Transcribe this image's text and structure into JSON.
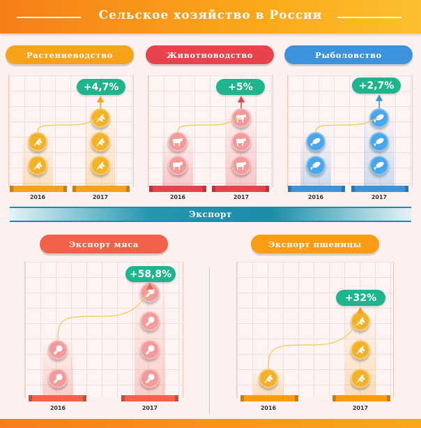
{
  "header": {
    "title": "Сельское хозяйство в России"
  },
  "export_section": {
    "title": "Экспорт"
  },
  "chart_data": [
    {
      "type": "pictograph",
      "title": "Растениеводство",
      "categories": [
        "2016",
        "2017"
      ],
      "icon": "wheat-icon",
      "icon_counts": [
        2,
        3
      ],
      "change_label": "+4,7%",
      "color": "#f7a21b"
    },
    {
      "type": "pictograph",
      "title": "Животноводство",
      "categories": [
        "2016",
        "2017"
      ],
      "icon": "cow-icon",
      "icon_counts": [
        2,
        3
      ],
      "change_label": "+5%",
      "color": "#e8434c"
    },
    {
      "type": "pictograph",
      "title": "Рыболовство",
      "categories": [
        "2016",
        "2017"
      ],
      "icon": "fish-icon",
      "icon_counts": [
        2,
        3
      ],
      "change_label": "+2,7%",
      "color": "#3d93db"
    },
    {
      "type": "pictograph",
      "title": "Экспорт мяса",
      "categories": [
        "2016",
        "2017"
      ],
      "icon": "drumstick-icon",
      "icon_counts": [
        2,
        4
      ],
      "change_label": "+58,8%",
      "color": "#f2614a"
    },
    {
      "type": "pictograph",
      "title": "Экспорт пшеницы",
      "categories": [
        "2016",
        "2017"
      ],
      "icon": "wheat-icon",
      "icon_counts": [
        1,
        3
      ],
      "change_label": "+32%",
      "color": "#fa9d15"
    }
  ]
}
